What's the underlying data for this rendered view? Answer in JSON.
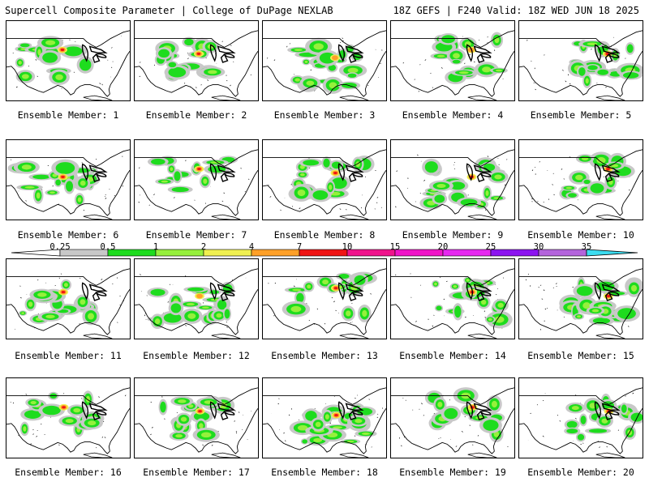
{
  "header": {
    "title": "Supercell Composite Parameter | College of DuPage NEXLAB",
    "run_info": "18Z GEFS | F240 Valid: 18Z WED JUN 18 2025"
  },
  "legend": {
    "labels": [
      "0.25",
      "0.5",
      "1",
      "2",
      "4",
      "7",
      "10",
      "15",
      "20",
      "25",
      "30",
      "35"
    ],
    "colors": [
      "#c8c8c8",
      "#1edc1e",
      "#96f03c",
      "#f0f050",
      "#ffa028",
      "#f01414",
      "#f0148c",
      "#f014c8",
      "#e628f0",
      "#8c14f0",
      "#b464dc",
      "#3cdcf0"
    ]
  },
  "members": [
    {
      "label": "Ensemble Member: 1",
      "intensity": 3
    },
    {
      "label": "Ensemble Member: 2",
      "intensity": 3
    },
    {
      "label": "Ensemble Member: 3",
      "intensity": 2
    },
    {
      "label": "Ensemble Member: 4",
      "intensity": 2
    },
    {
      "label": "Ensemble Member: 5",
      "intensity": 4
    },
    {
      "label": "Ensemble Member: 6",
      "intensity": 4
    },
    {
      "label": "Ensemble Member: 7",
      "intensity": 3
    },
    {
      "label": "Ensemble Member: 8",
      "intensity": 3
    },
    {
      "label": "Ensemble Member: 9",
      "intensity": 3
    },
    {
      "label": "Ensemble Member: 10",
      "intensity": 4
    },
    {
      "label": "Ensemble Member: 11",
      "intensity": 3
    },
    {
      "label": "Ensemble Member: 12",
      "intensity": 2
    },
    {
      "label": "Ensemble Member: 13",
      "intensity": 3
    },
    {
      "label": "Ensemble Member: 14",
      "intensity": 3
    },
    {
      "label": "Ensemble Member: 15",
      "intensity": 4
    },
    {
      "label": "Ensemble Member: 16",
      "intensity": 3
    },
    {
      "label": "Ensemble Member: 17",
      "intensity": 4
    },
    {
      "label": "Ensemble Member: 18",
      "intensity": 4
    },
    {
      "label": "Ensemble Member: 19",
      "intensity": 3
    },
    {
      "label": "Ensemble Member: 20",
      "intensity": 3
    }
  ]
}
